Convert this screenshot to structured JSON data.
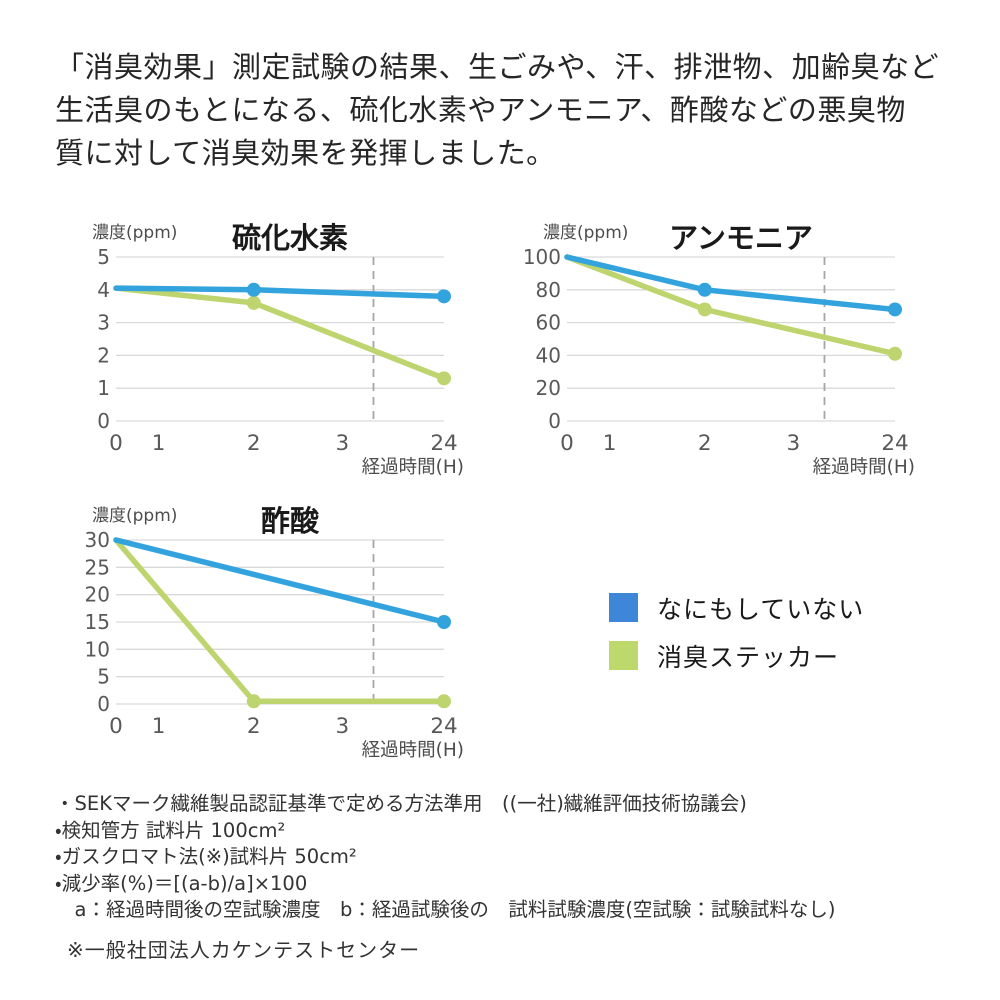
{
  "heading": {
    "lines": [
      "「消臭効果」測定試験の結果、生ごみや、汗、排泄物、加齢臭など",
      "生活臭のもとになる、硫化水素やアンモニア、酢酸などの悪臭物",
      "質に対して消臭効果を発揮しました。"
    ]
  },
  "colors": {
    "blue": "#33a3dd",
    "green": "#bed56f",
    "legend_blue": "#3e86d8",
    "legend_green": "#bdd96e",
    "grid": "#d9d9d9",
    "dashed": "#a6a6a6",
    "tick_text": "#595959",
    "label_text": "#4d4d4d",
    "title_text": "#1a1a1a"
  },
  "chart_data": [
    {
      "type": "line",
      "title": "硫化水素",
      "ylabel": "濃度(ppm)",
      "xlabel": "経過時間(H)",
      "ylim": [
        0,
        5
      ],
      "yticks": [
        0,
        1,
        2,
        3,
        4,
        5
      ],
      "xticks": [
        {
          "label": "0",
          "pos": 0
        },
        {
          "label": "1",
          "pos": 0.13
        },
        {
          "label": "2",
          "pos": 0.42
        },
        {
          "label": "3",
          "pos": 0.69
        },
        {
          "label": "24",
          "pos": 1
        }
      ],
      "dashed_line_pos": 0.785,
      "grid": true,
      "series": [
        {
          "name": "なにもしていない",
          "color": "blue",
          "points": [
            {
              "x": "0",
              "y": 4.05,
              "dot": false
            },
            {
              "x": "2",
              "y": 4.0,
              "dot": true
            },
            {
              "x": "24",
              "y": 3.8,
              "dot": true
            }
          ]
        },
        {
          "name": "消臭ステッカー",
          "color": "green",
          "points": [
            {
              "x": "0",
              "y": 4.05,
              "dot": false
            },
            {
              "x": "2",
              "y": 3.6,
              "dot": true
            },
            {
              "x": "24",
              "y": 1.3,
              "dot": true
            }
          ]
        }
      ]
    },
    {
      "type": "line",
      "title": "アンモニア",
      "ylabel": "濃度(ppm)",
      "xlabel": "経過時間(H)",
      "ylim": [
        0,
        100
      ],
      "yticks": [
        0,
        20,
        40,
        60,
        80,
        100
      ],
      "xticks": [
        {
          "label": "0",
          "pos": 0
        },
        {
          "label": "1",
          "pos": 0.13
        },
        {
          "label": "2",
          "pos": 0.42
        },
        {
          "label": "3",
          "pos": 0.69
        },
        {
          "label": "24",
          "pos": 1
        }
      ],
      "dashed_line_pos": 0.785,
      "grid": true,
      "series": [
        {
          "name": "なにもしていない",
          "color": "blue",
          "points": [
            {
              "x": "0",
              "y": 100,
              "dot": false
            },
            {
              "x": "2",
              "y": 80,
              "dot": true
            },
            {
              "x": "24",
              "y": 68,
              "dot": true
            }
          ]
        },
        {
          "name": "消臭ステッカー",
          "color": "green",
          "points": [
            {
              "x": "0",
              "y": 100,
              "dot": false
            },
            {
              "x": "2",
              "y": 68,
              "dot": true
            },
            {
              "x": "24",
              "y": 41,
              "dot": true
            }
          ]
        }
      ]
    },
    {
      "type": "line",
      "title": "酢酸",
      "ylabel": "濃度(ppm)",
      "xlabel": "経過時間(H)",
      "ylim": [
        0,
        30
      ],
      "yticks": [
        0,
        5,
        10,
        15,
        20,
        25,
        30
      ],
      "xticks": [
        {
          "label": "0",
          "pos": 0
        },
        {
          "label": "1",
          "pos": 0.13
        },
        {
          "label": "2",
          "pos": 0.42
        },
        {
          "label": "3",
          "pos": 0.69
        },
        {
          "label": "24",
          "pos": 1
        }
      ],
      "dashed_line_pos": 0.785,
      "grid": true,
      "series": [
        {
          "name": "なにもしていない",
          "color": "blue",
          "points": [
            {
              "x": "0",
              "y": 30,
              "dot": false
            },
            {
              "x": "24",
              "y": 15,
              "dot": true
            }
          ]
        },
        {
          "name": "消臭ステッカー",
          "color": "green",
          "points": [
            {
              "x": "0",
              "y": 30,
              "dot": false
            },
            {
              "x": "2",
              "y": 0.5,
              "dot": true
            },
            {
              "x": "24",
              "y": 0.5,
              "dot": true
            }
          ]
        }
      ]
    }
  ],
  "legend": {
    "items": [
      {
        "label": "なにもしていない",
        "swatch": "legend_blue"
      },
      {
        "label": "消臭ステッカー",
        "swatch": "legend_green"
      }
    ]
  },
  "footer": {
    "lines": [
      "・SEKマーク繊維製品認証基準で定める方法準用　((一社)繊維評価技術協議会)",
      "・検知管方 試料片 100cm²",
      "・ガスクロマト法(※)試料片 50cm²",
      "・減少率(%)＝[(a-b)/a]×100",
      "　a：経過時間後の空試験濃度　b：経過試験後の　試料試験濃度(空試験：試験試料なし)"
    ],
    "note": "※一般社団法人カケンテストセンター"
  }
}
